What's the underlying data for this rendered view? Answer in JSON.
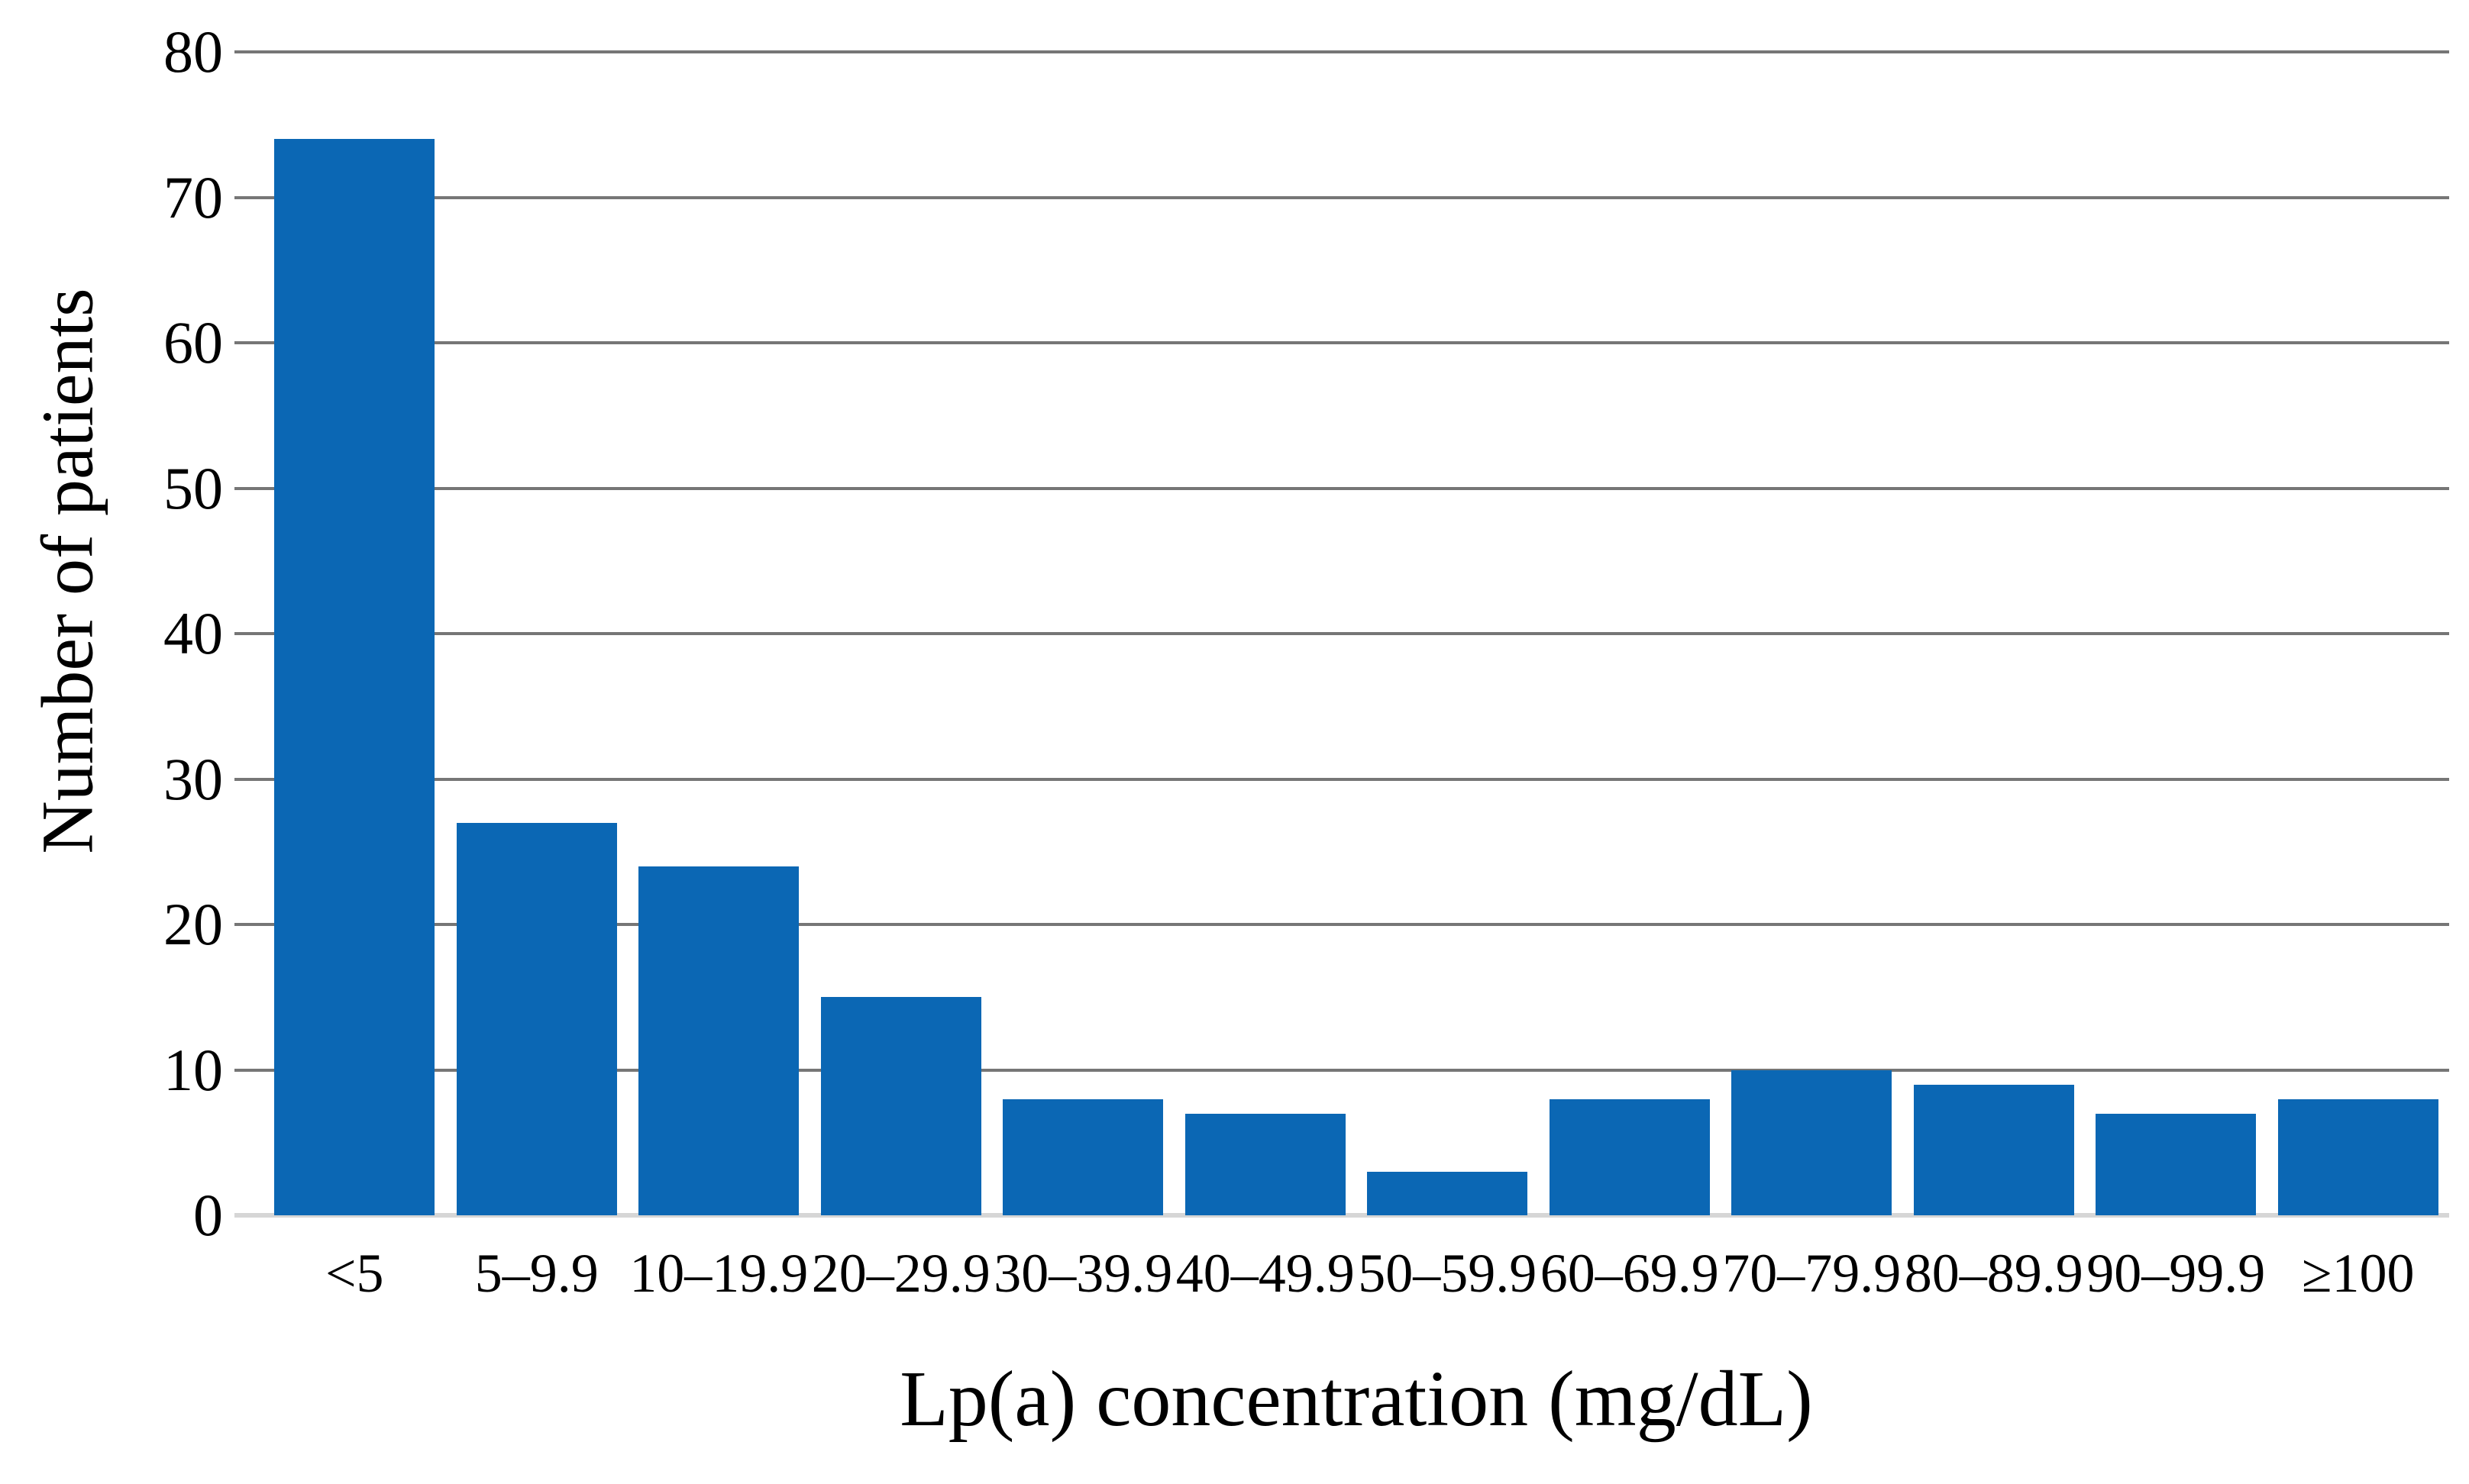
{
  "chart_data": {
    "type": "bar",
    "title": "",
    "xlabel": "Lp(a) concentration (mg/dL)",
    "ylabel": "Number of patients",
    "categories": [
      "<5",
      "5–9.9",
      "10–19.9",
      "20–29.9",
      "30–39.9",
      "40–49.9",
      "50–59.9",
      "60–69.9",
      "70–79.9",
      "80–89.9",
      "90–99.9",
      "≥100"
    ],
    "values": [
      74,
      27,
      24,
      15,
      8,
      7,
      3,
      8,
      10,
      9,
      7,
      8
    ],
    "ylim": [
      0,
      80
    ],
    "yticks": [
      0,
      10,
      20,
      30,
      40,
      50,
      60,
      70,
      80
    ],
    "grid": "horizontal",
    "legend": "none",
    "colors": {
      "bar": "#0b67b4",
      "gridline": "#767676",
      "baseline": "#d6d6d6",
      "text": "#000000",
      "background": "#ffffff"
    }
  }
}
